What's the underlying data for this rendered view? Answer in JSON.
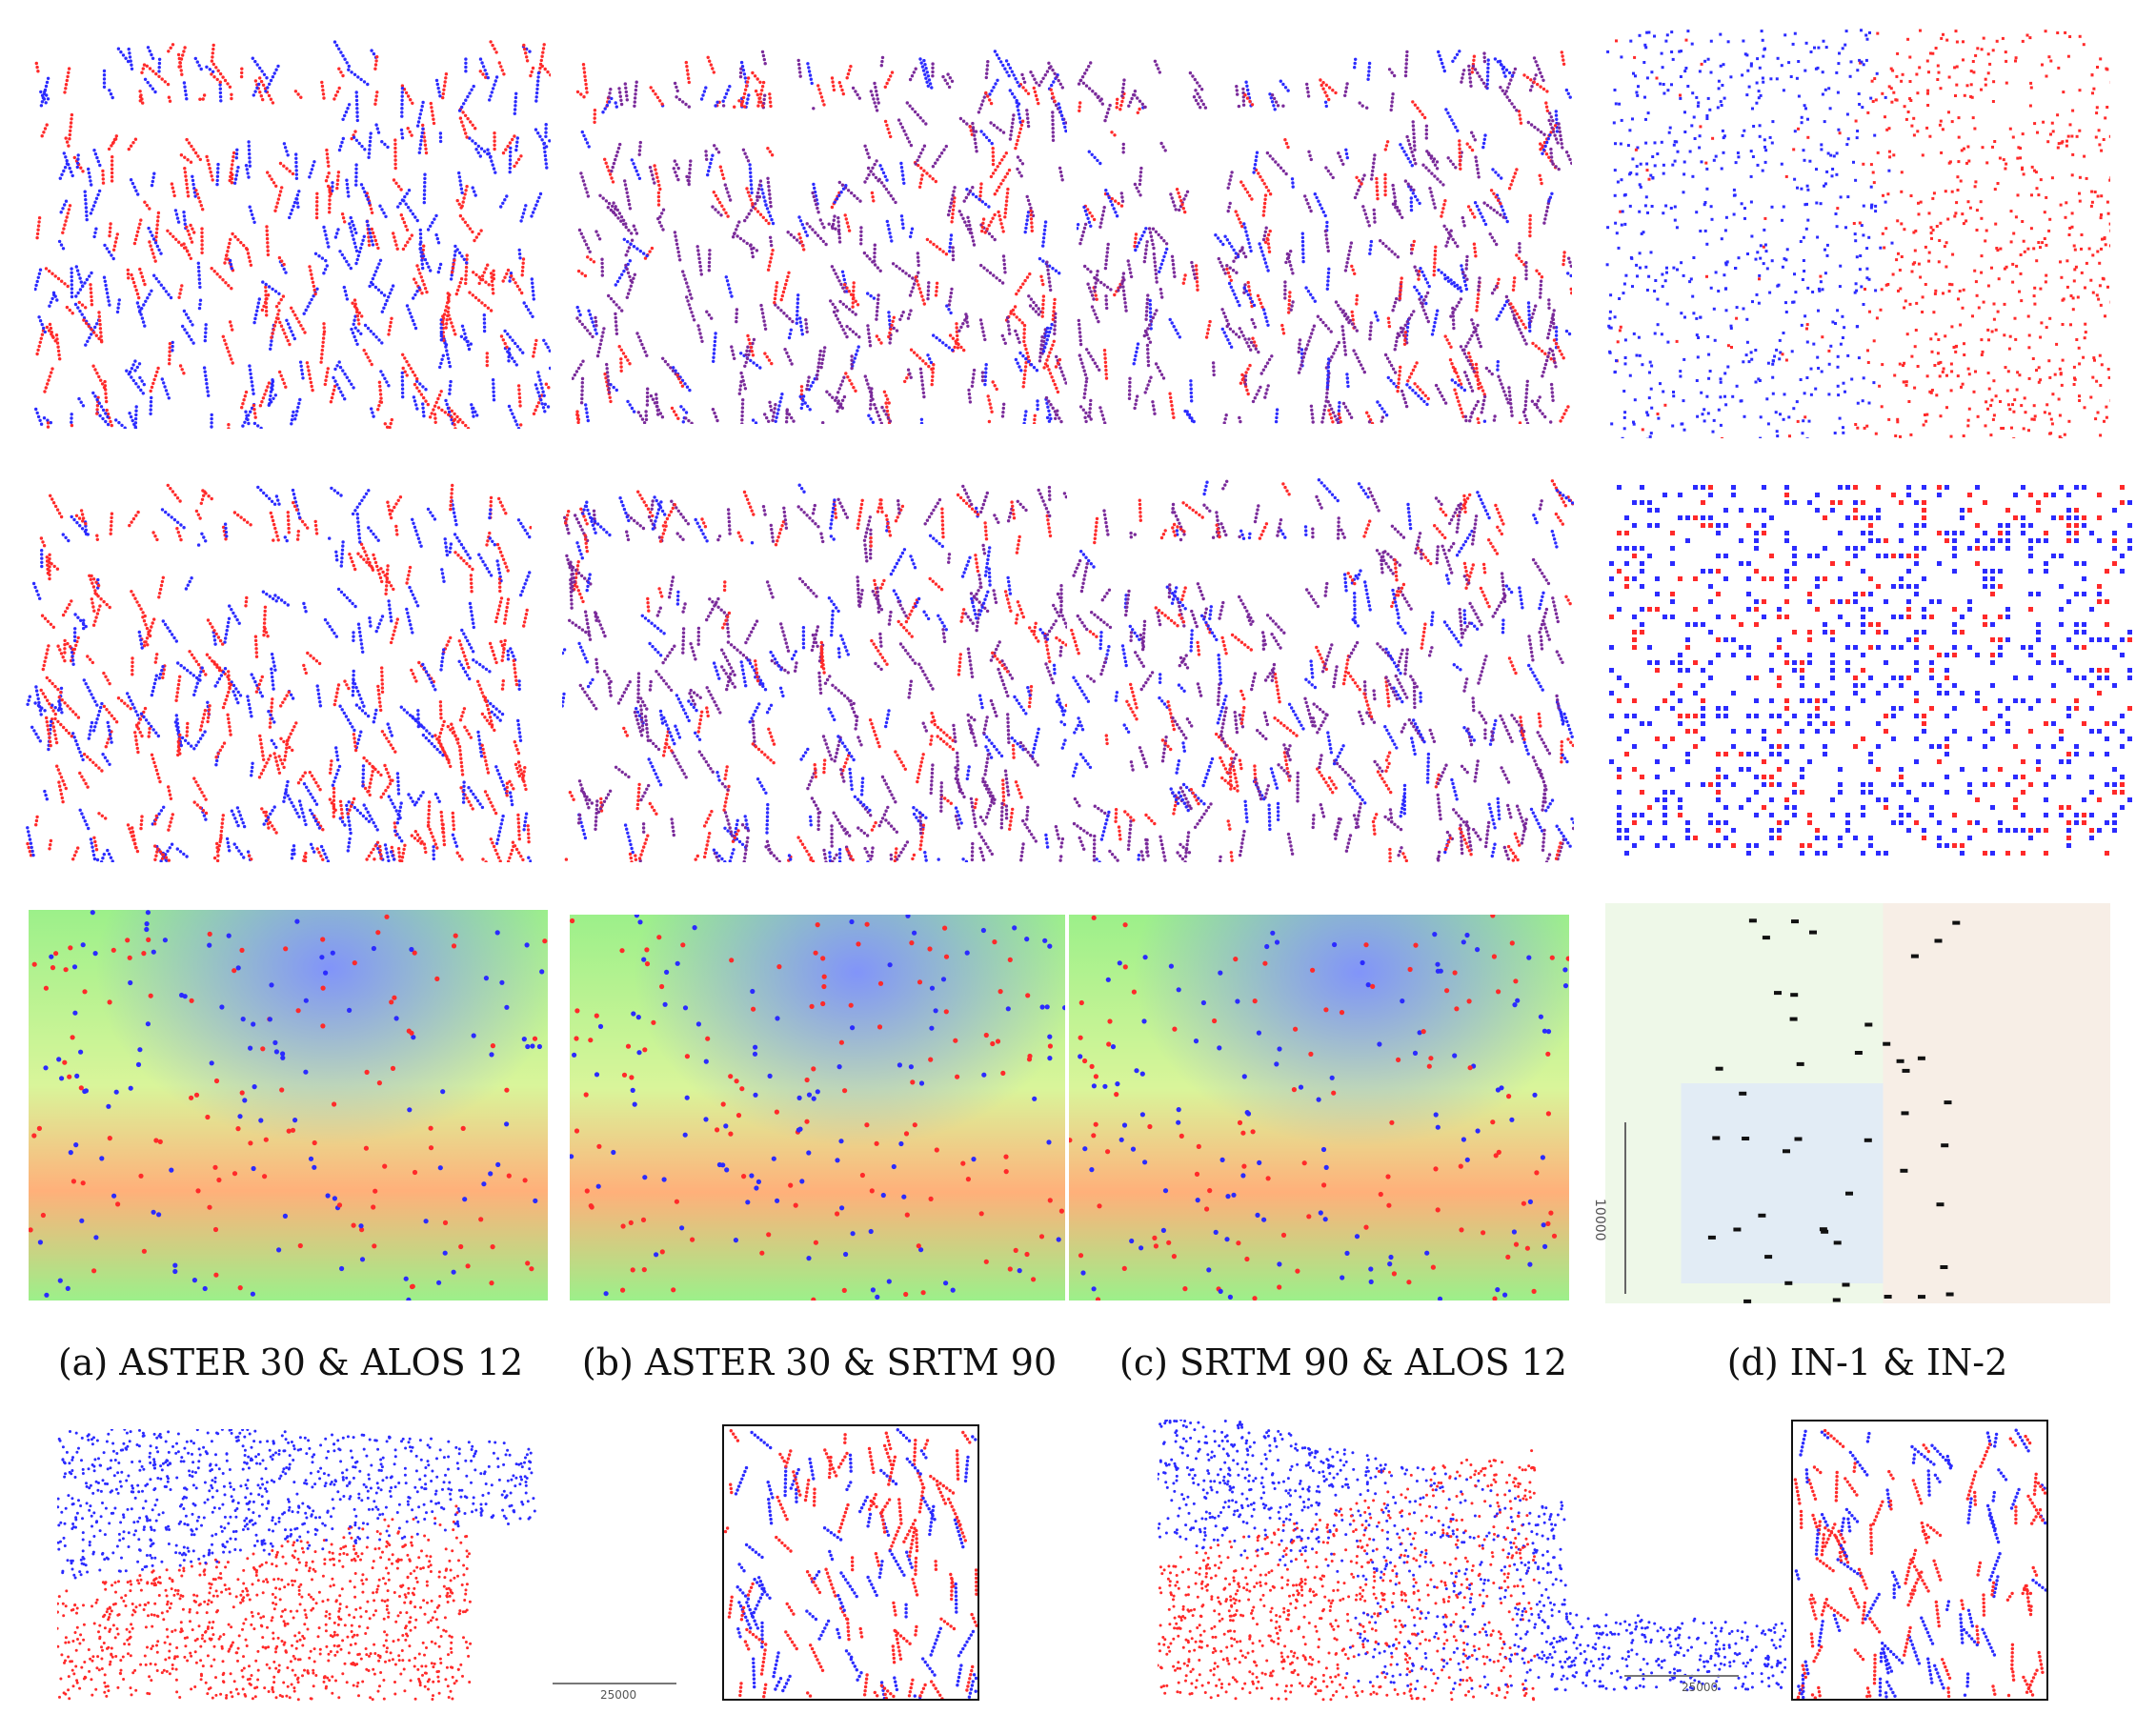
{
  "captions": {
    "a": "(a) ASTER 30 & ALOS 12",
    "b": "(b) ASTER 30 & SRTM 90",
    "c": "(c) SRTM 90 & ALOS 12",
    "d": "(d) IN-1 & IN-2"
  },
  "scale_labels": {
    "d_vertical": "10000",
    "bottom_left": "25000",
    "bottom_right": "25000"
  },
  "colors": {
    "series_a": "#2b2bff",
    "series_b": "#ff2a2a",
    "overlap": "#7a2a9a",
    "terrain_low": "#7f8fff",
    "terrain_mid": "#9cf08a",
    "terrain_high": "#ffb07a"
  }
}
